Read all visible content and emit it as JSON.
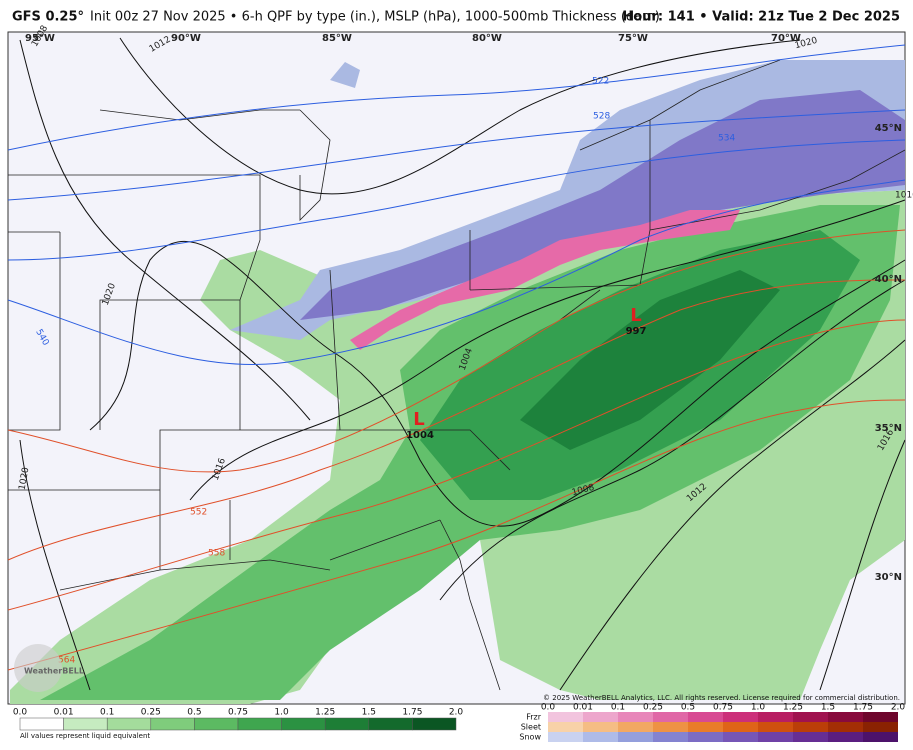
{
  "header": {
    "model": "GFS 0.25°",
    "title": "Init 00z 27 Nov 2025 • 6-h QPF by type (in.), MSLP (hPa), 1000-500mb Thickness (dam)",
    "valid": "Hour: 141 • Valid: 21z Tue 2 Dec 2025"
  },
  "map": {
    "longitudes": [
      "95°W",
      "90°W",
      "85°W",
      "80°W",
      "75°W",
      "70°W"
    ],
    "latitudes": [
      "45°N",
      "40°N",
      "35°N",
      "30°N"
    ],
    "isobar_labels": [
      "1008",
      "1012",
      "1020",
      "1016",
      "1020",
      "1004",
      "1008",
      "1012",
      "1016",
      "1020",
      "1016"
    ],
    "thickness_labels": [
      "522",
      "528",
      "534",
      "540",
      "552",
      "558",
      "564"
    ],
    "lows": [
      {
        "symbol": "L",
        "pressure": "1004"
      },
      {
        "symbol": "L",
        "pressure": "997"
      }
    ],
    "watermark": "WeatherBELL",
    "copyright": "© 2025 WeatherBELL Analytics, LLC. All rights reserved. License required for commercial distribution."
  },
  "legend": {
    "rain_ticks": [
      "0.0",
      "0.01",
      "0.1",
      "0.25",
      "0.5",
      "0.75",
      "1.0",
      "1.25",
      "1.5",
      "1.75",
      "2.0"
    ],
    "note": "All values represent liquid equivalent",
    "types": [
      "Frzr",
      "Sleet",
      "Snow"
    ],
    "mixed_ticks": [
      "0.0",
      "0.01",
      "0.1",
      "0.25",
      "0.5",
      "0.75",
      "1.0",
      "1.25",
      "1.5",
      "1.75",
      "2.0"
    ]
  }
}
